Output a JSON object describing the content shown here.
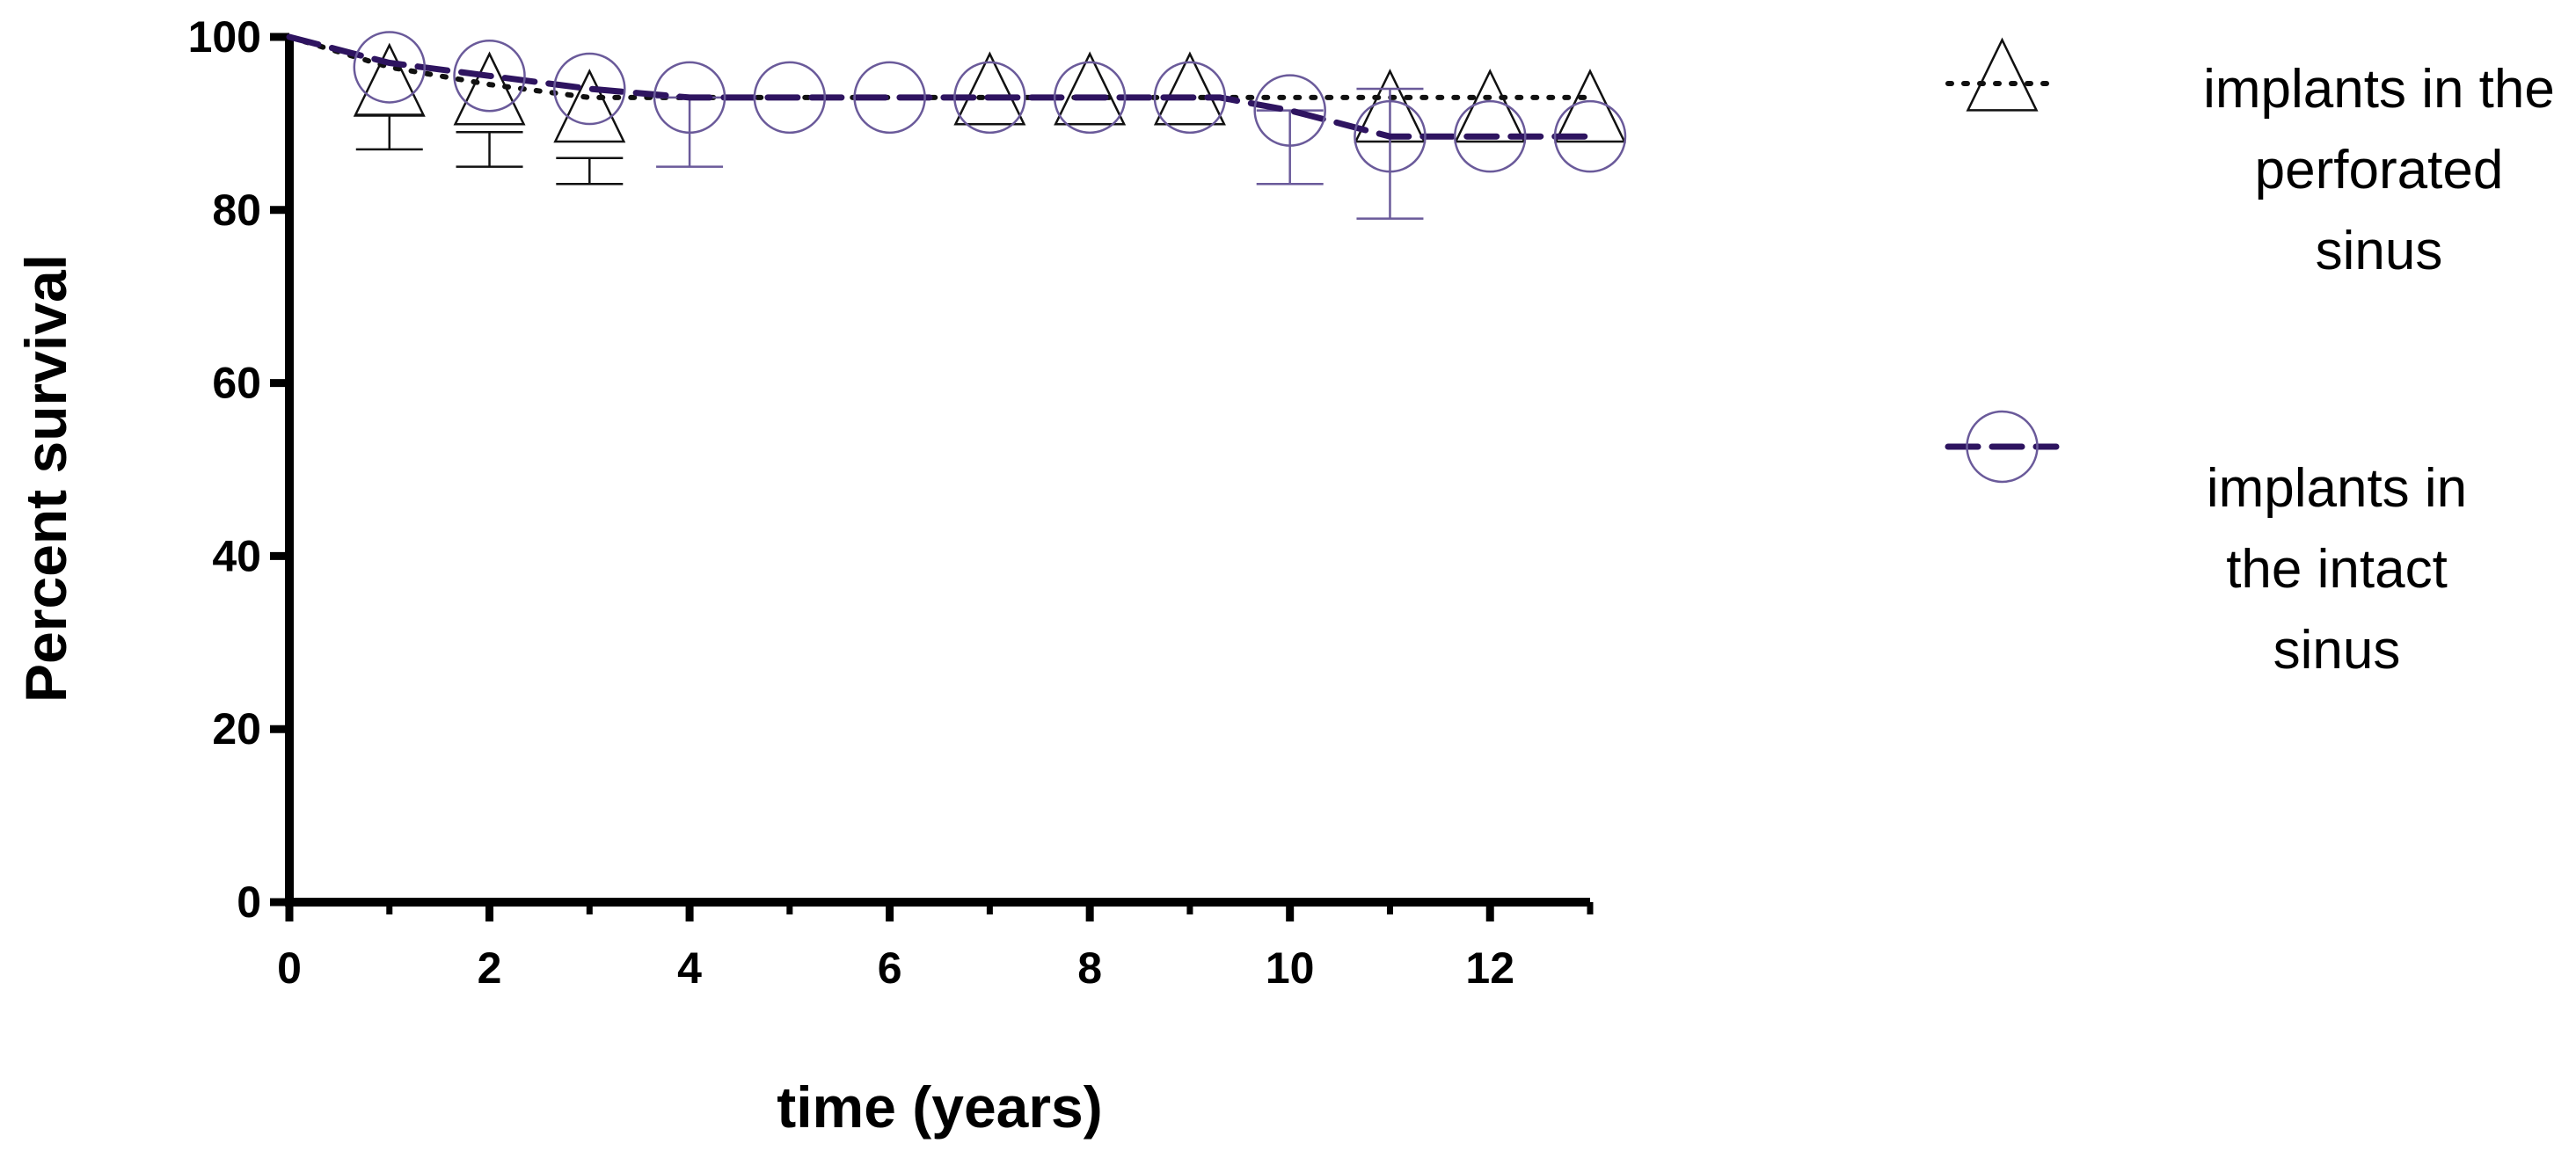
{
  "chart_data": {
    "type": "line",
    "title": "",
    "xlabel": "time (years)",
    "ylabel": "Percent survival",
    "xlim": [
      0,
      13
    ],
    "ylim": [
      0,
      100
    ],
    "xticks": [
      "0",
      "2",
      "4",
      "6",
      "8",
      "10",
      "12"
    ],
    "yticks": [
      "0",
      "20",
      "40",
      "60",
      "80",
      "100"
    ],
    "grid": false,
    "legend_position": "right",
    "series": [
      {
        "name": "implants in the perforated sinus",
        "legend_lines": [
          "implants in the",
          "perforated",
          "sinus"
        ],
        "line_style": "dotted",
        "marker": "triangle",
        "color": "#111111",
        "curve": [
          [
            0,
            100
          ],
          [
            1,
            96.5
          ],
          [
            2,
            94.5
          ],
          [
            3,
            93
          ],
          [
            4,
            93
          ],
          [
            13,
            93
          ]
        ],
        "markers": [
          [
            1,
            94
          ],
          [
            2,
            93
          ],
          [
            3,
            91
          ],
          [
            7,
            93
          ],
          [
            8,
            93
          ],
          [
            9,
            93
          ],
          [
            11,
            91
          ],
          [
            12,
            91
          ],
          [
            13,
            91
          ]
        ],
        "error_bars": [
          [
            1,
            87,
            91
          ],
          [
            2,
            85,
            89
          ],
          [
            3,
            83,
            86
          ]
        ]
      },
      {
        "name": "implants in the intact sinus",
        "legend_lines": [
          "implants in",
          "the intact",
          "sinus"
        ],
        "line_style": "dashed",
        "marker": "circle",
        "color": "#2e1460",
        "marker_color": "#6a5a9a",
        "curve": [
          [
            0,
            100
          ],
          [
            1,
            97
          ],
          [
            2,
            95.5
          ],
          [
            3,
            94
          ],
          [
            4,
            93
          ],
          [
            9.3,
            93
          ],
          [
            10,
            91.5
          ],
          [
            11,
            88.5
          ],
          [
            13,
            88.5
          ]
        ],
        "markers": [
          [
            1,
            96.5
          ],
          [
            2,
            95.5
          ],
          [
            3,
            94
          ],
          [
            4,
            93
          ],
          [
            5,
            93
          ],
          [
            6,
            93
          ],
          [
            7,
            93
          ],
          [
            8,
            93
          ],
          [
            9,
            93
          ],
          [
            10,
            91.5
          ],
          [
            11,
            88.5
          ],
          [
            12,
            88.5
          ],
          [
            13,
            88.5
          ]
        ],
        "error_bars": [
          [
            4,
            85,
            93
          ],
          [
            10,
            83,
            91.5
          ],
          [
            11,
            79,
            94
          ]
        ]
      }
    ]
  }
}
